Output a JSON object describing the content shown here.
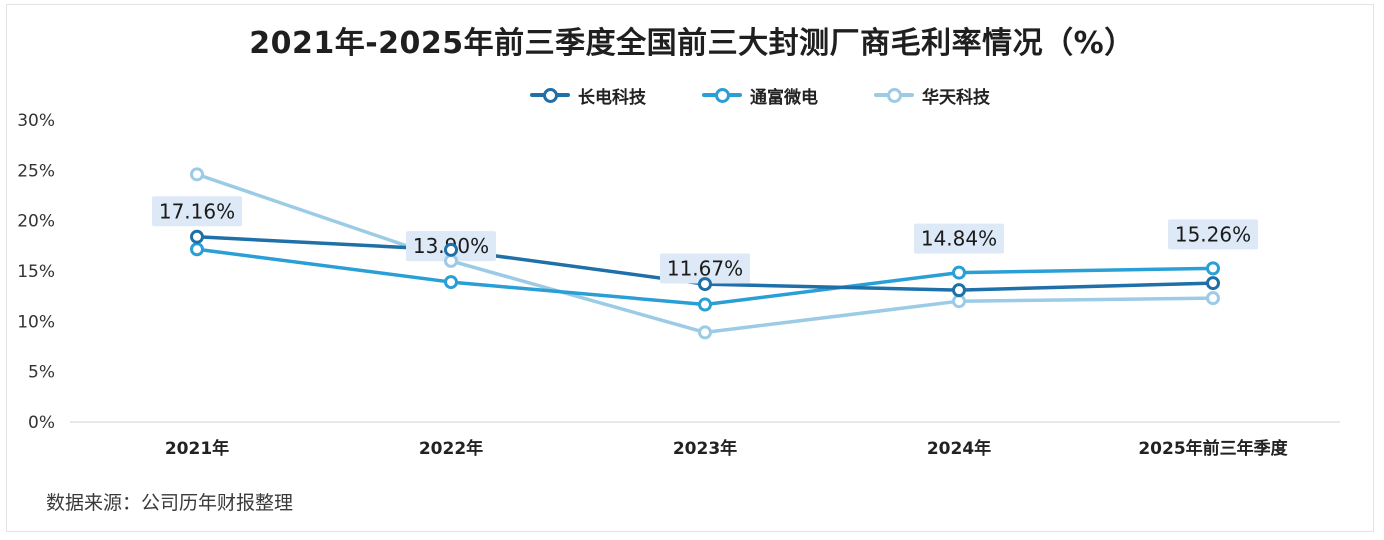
{
  "title": "2021年-2025年前三季度全国前三大封测厂商毛利率情况（%）",
  "source_note": "数据来源：公司历年财报整理",
  "chart_data": {
    "type": "line",
    "categories": [
      "2021年",
      "2022年",
      "2023年",
      "2024年",
      "2025年前三年季度"
    ],
    "y_ticks": [
      "0%",
      "5%",
      "10%",
      "15%",
      "20%",
      "25%",
      "30%"
    ],
    "ylim": [
      0,
      30
    ],
    "series": [
      {
        "name": "长电科技",
        "color": "#1f6fa8",
        "values": [
          18.4,
          17.1,
          13.7,
          13.1,
          13.8
        ]
      },
      {
        "name": "通富微电",
        "color": "#2a9fd6",
        "values": [
          17.16,
          13.9,
          11.67,
          14.84,
          15.26
        ]
      },
      {
        "name": "华天科技",
        "color": "#9ccbe6",
        "values": [
          24.6,
          16.0,
          8.9,
          12.0,
          12.3
        ]
      }
    ],
    "data_labels": [
      "17.16%",
      "13.90%",
      "11.67%",
      "14.84%",
      "15.26%"
    ],
    "legend_position": "top"
  }
}
